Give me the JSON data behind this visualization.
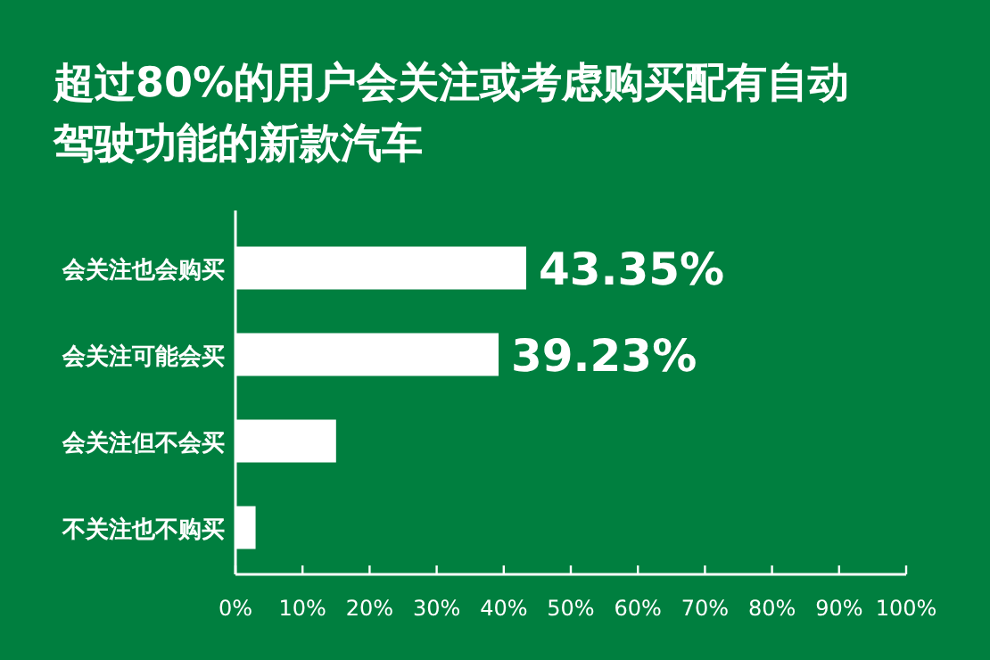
{
  "chart_data": {
    "type": "bar",
    "orientation": "horizontal",
    "title": "超过80%的用户会关注或考虑购买配有自动驾驶功能的新款汽车",
    "categories": [
      "会关注也会购买",
      "会关注可能会买",
      "会关注但不会买",
      "不关注也不购买"
    ],
    "values": [
      43.35,
      39.23,
      15,
      3
    ],
    "value_labels": [
      "43.35%",
      "39.23%",
      null,
      null
    ],
    "color": "#ffffff",
    "xlim": [
      0,
      100
    ],
    "xticks": [
      {
        "value": 0,
        "label": "0%"
      },
      {
        "value": 10,
        "label": "10%"
      },
      {
        "value": 20,
        "label": "20%"
      },
      {
        "value": 30,
        "label": "30%"
      },
      {
        "value": 40,
        "label": "40%"
      },
      {
        "value": 50,
        "label": "50%"
      },
      {
        "value": 60,
        "label": "60%"
      },
      {
        "value": 70,
        "label": "70%"
      },
      {
        "value": 80,
        "label": "80%"
      },
      {
        "value": 90,
        "label": "90%"
      },
      {
        "value": 100,
        "label": "100%"
      }
    ]
  }
}
